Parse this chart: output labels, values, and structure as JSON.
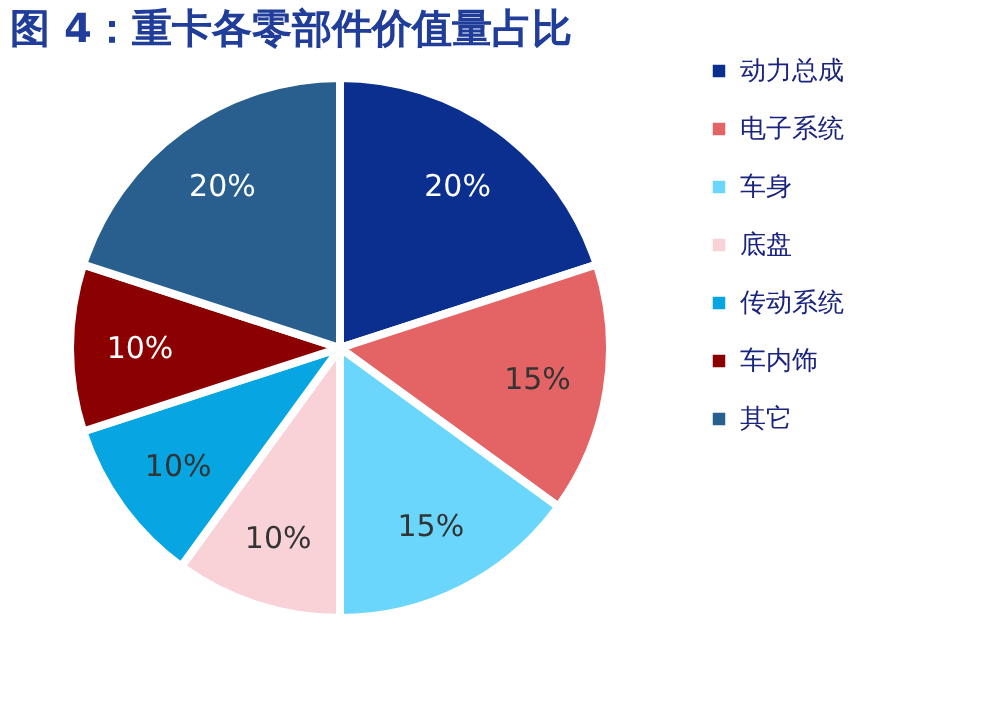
{
  "chart_data": {
    "type": "pie",
    "title": "图 4：重卡各零部件价值量占比",
    "categories": [
      "动力总成",
      "电子系统",
      "车身",
      "底盘",
      "传动系统",
      "车内饰",
      "其它"
    ],
    "values": [
      20,
      15,
      15,
      10,
      10,
      10,
      20
    ],
    "value_labels": [
      "20%",
      "15%",
      "15%",
      "10%",
      "10%",
      "10%",
      "20%"
    ],
    "colors": [
      "#0a2f8f",
      "#e46466",
      "#6ad6fb",
      "#f8d2d6",
      "#07a6e3",
      "#8b0000",
      "#285f8f"
    ],
    "legend": "right"
  }
}
